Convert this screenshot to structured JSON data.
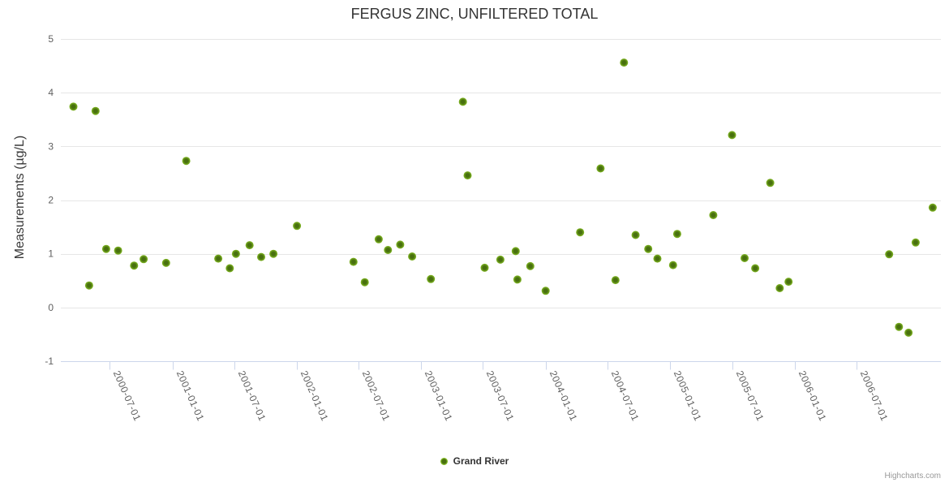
{
  "credit": {
    "label": "Highcharts.com"
  },
  "colors": {
    "point_outer": "#82b923",
    "point_inner": "#48700f",
    "grid": "#e6e6e6",
    "axis_line": "#ccd6eb",
    "label": "#606060",
    "title": "#333333",
    "credit": "#999999"
  },
  "chart_data": {
    "type": "scatter",
    "title": "FERGUS ZINC, UNFILTERED TOTAL",
    "xlabel": "",
    "ylabel": "Measurements (µg/L)",
    "ylim": [
      -1,
      5
    ],
    "yticks": [
      5,
      4,
      3,
      2,
      1,
      0,
      -1
    ],
    "x_range": [
      "2000-02-08",
      "2007-03-06"
    ],
    "xticks": [
      "2000-07-01",
      "2001-01-01",
      "2001-07-01",
      "2002-01-01",
      "2002-07-01",
      "2003-01-01",
      "2003-07-01",
      "2004-01-01",
      "2004-07-01",
      "2005-01-01",
      "2005-07-01",
      "2006-01-01",
      "2006-07-01"
    ],
    "grid": "horizontal",
    "legend_position": "bottom-center",
    "series": [
      {
        "name": "Grand River",
        "color": "#82b923",
        "points": [
          [
            "2000-03-16",
            3.74
          ],
          [
            "2000-05-01",
            0.41
          ],
          [
            "2000-05-20",
            3.66
          ],
          [
            "2000-06-20",
            1.09
          ],
          [
            "2000-07-25",
            1.06
          ],
          [
            "2000-09-10",
            0.78
          ],
          [
            "2000-10-08",
            0.9
          ],
          [
            "2000-12-13",
            0.83
          ],
          [
            "2001-02-10",
            2.73
          ],
          [
            "2001-05-15",
            0.91
          ],
          [
            "2001-06-18",
            0.73
          ],
          [
            "2001-07-06",
            1.0
          ],
          [
            "2001-08-15",
            1.16
          ],
          [
            "2001-09-18",
            0.94
          ],
          [
            "2001-10-24",
            1.0
          ],
          [
            "2002-01-01",
            1.52
          ],
          [
            "2002-06-16",
            0.85
          ],
          [
            "2002-07-19",
            0.47
          ],
          [
            "2002-08-29",
            1.27
          ],
          [
            "2002-09-25",
            1.07
          ],
          [
            "2002-10-31",
            1.17
          ],
          [
            "2002-12-05",
            0.95
          ],
          [
            "2003-01-29",
            0.53
          ],
          [
            "2003-05-03",
            3.83
          ],
          [
            "2003-05-17",
            2.46
          ],
          [
            "2003-07-06",
            0.74
          ],
          [
            "2003-08-21",
            0.89
          ],
          [
            "2003-10-05",
            1.05
          ],
          [
            "2003-10-10",
            0.52
          ],
          [
            "2003-11-17",
            0.77
          ],
          [
            "2004-01-01",
            0.31
          ],
          [
            "2004-04-11",
            1.4
          ],
          [
            "2004-06-10",
            2.59
          ],
          [
            "2004-07-24",
            0.51
          ],
          [
            "2004-08-18",
            4.56
          ],
          [
            "2004-09-21",
            1.35
          ],
          [
            "2004-10-28",
            1.09
          ],
          [
            "2004-11-24",
            0.91
          ],
          [
            "2005-01-09",
            0.79
          ],
          [
            "2005-01-21",
            1.37
          ],
          [
            "2005-05-07",
            1.72
          ],
          [
            "2005-07-01",
            3.21
          ],
          [
            "2005-08-07",
            0.92
          ],
          [
            "2005-09-07",
            0.73
          ],
          [
            "2005-10-21",
            2.32
          ],
          [
            "2005-11-18",
            0.36
          ],
          [
            "2005-12-14",
            0.48
          ],
          [
            "2006-10-05",
            0.99
          ],
          [
            "2006-11-03",
            -0.36
          ],
          [
            "2006-12-01",
            -0.47
          ],
          [
            "2006-12-22",
            1.21
          ],
          [
            "2007-02-10",
            1.86
          ]
        ]
      }
    ]
  }
}
